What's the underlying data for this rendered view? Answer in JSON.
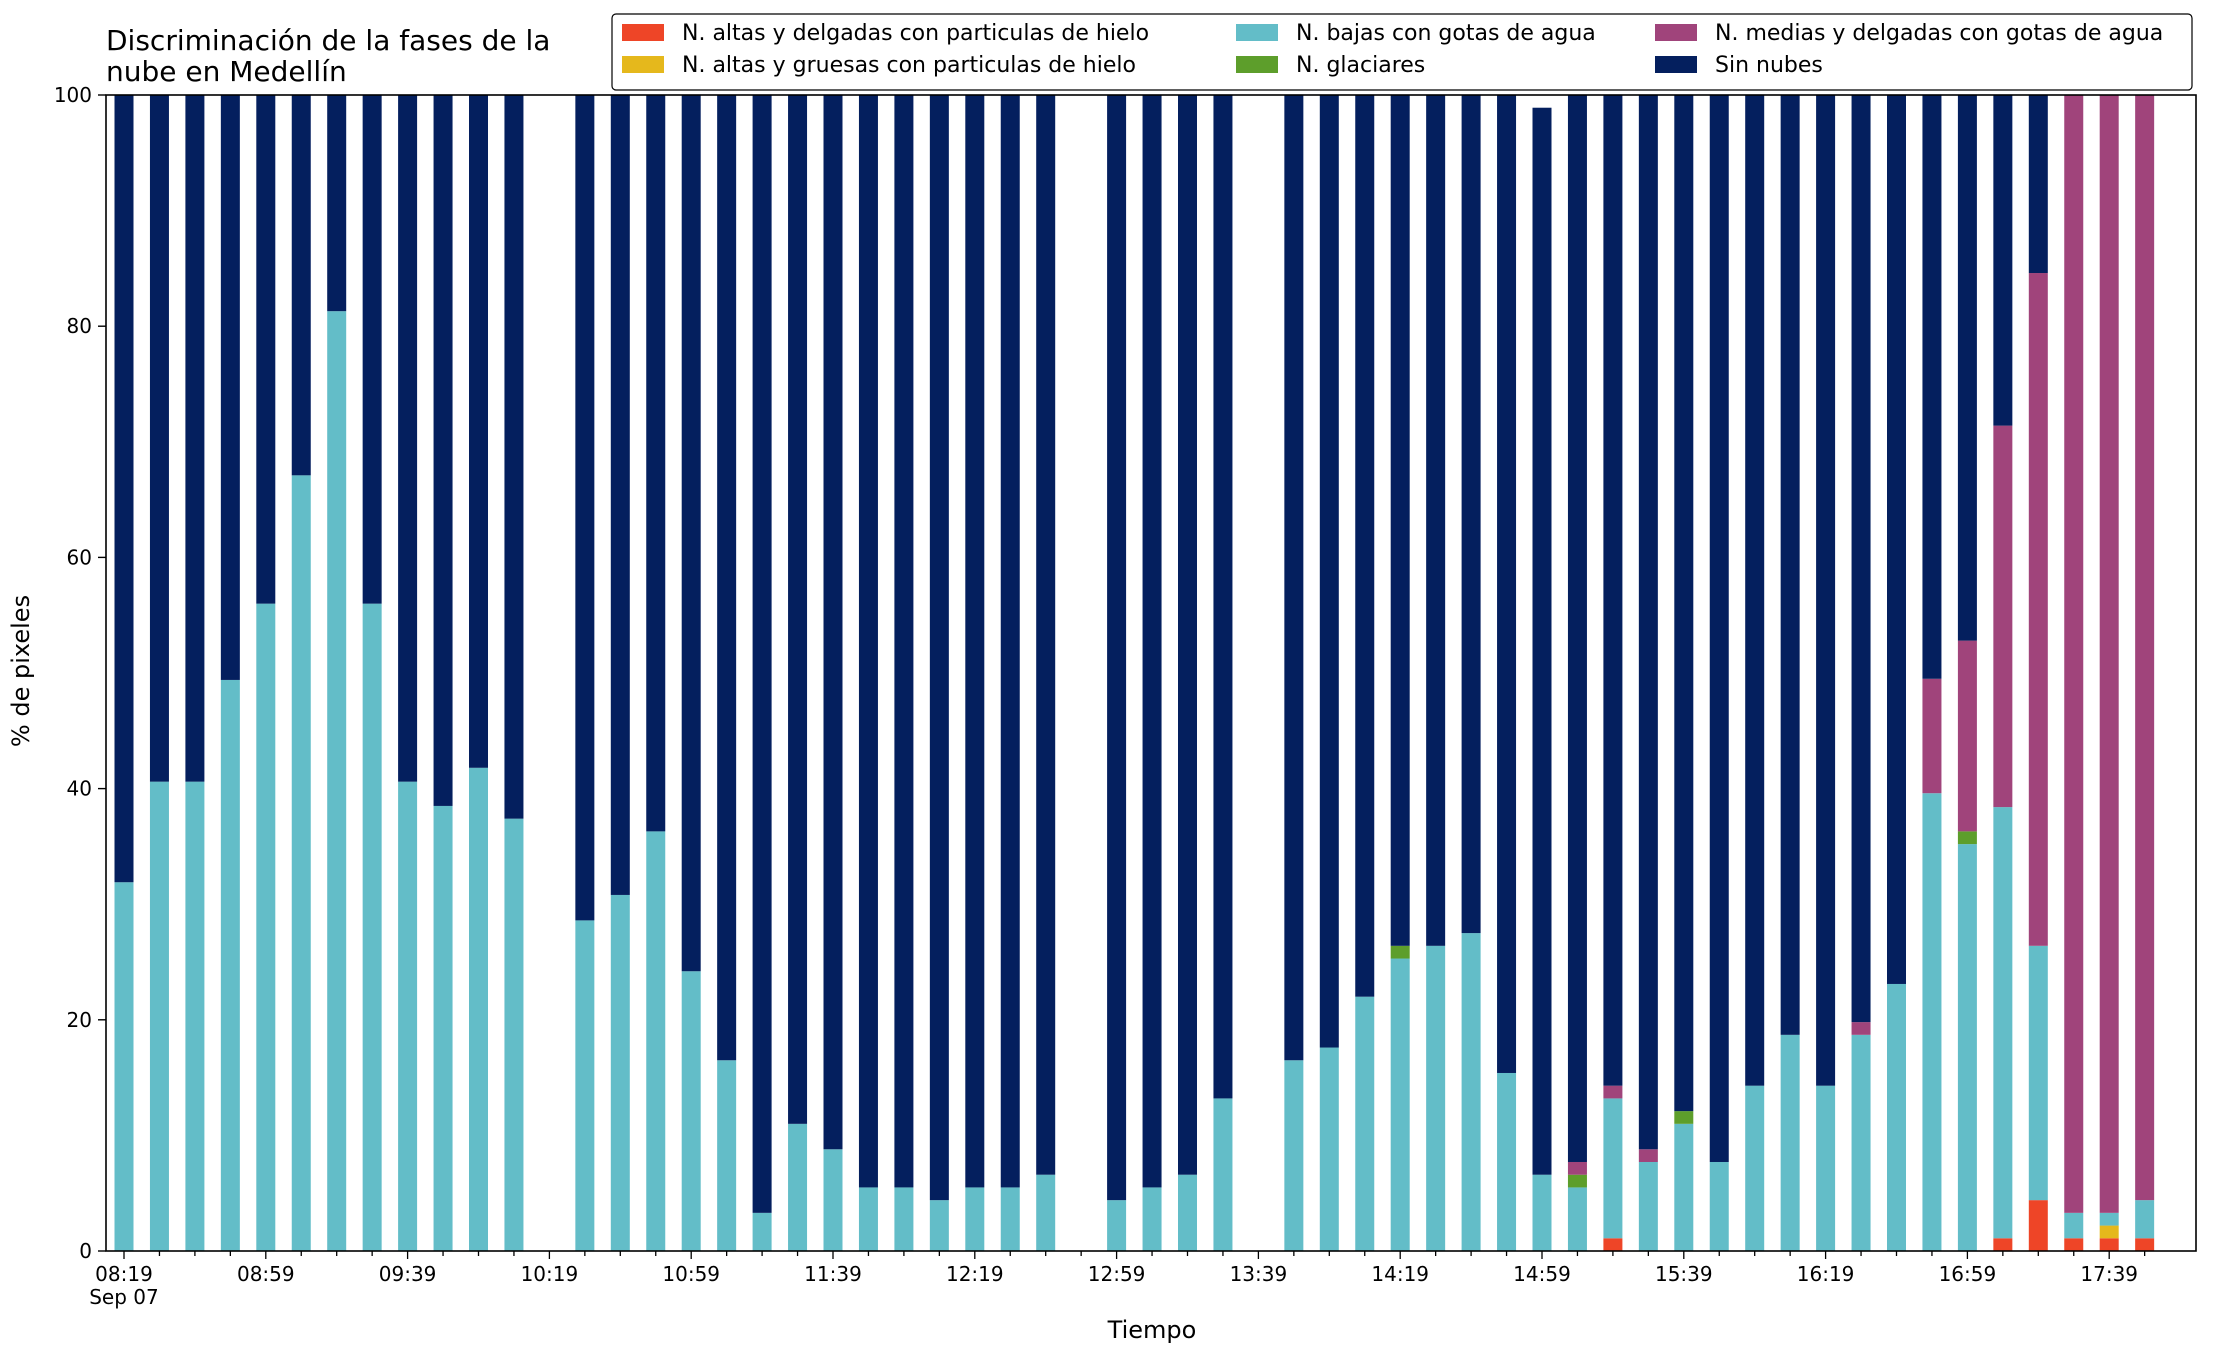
{
  "chart_data": {
    "type": "bar",
    "stacked": true,
    "title": "Discriminación de la fases de la\nnube en Medellín",
    "xlabel": "Tiempo",
    "ylabel": "% de pixeles",
    "ylim": [
      0,
      100
    ],
    "yticks": [
      0,
      20,
      40,
      60,
      80,
      100
    ],
    "xtick_labels": [
      "08:19\nSep 07",
      "08:59",
      "09:39",
      "10:19",
      "10:59",
      "11:39",
      "12:19",
      "12:59",
      "13:39",
      "14:19",
      "14:59",
      "15:39",
      "16:19",
      "16:59",
      "17:39"
    ],
    "legend_position": "top-right",
    "legend_columns": 3,
    "grid": false,
    "categories": [
      "08:19",
      "08:29",
      "08:39",
      "08:49",
      "08:59",
      "09:09",
      "09:19",
      "09:29",
      "09:39",
      "09:49",
      "09:59",
      "10:09",
      "10:19",
      "10:29",
      "10:39",
      "10:49",
      "10:59",
      "11:09",
      "11:19",
      "11:29",
      "11:39",
      "11:49",
      "11:59",
      "12:09",
      "12:19",
      "12:29",
      "12:39",
      "12:49",
      "12:59",
      "13:09",
      "13:19",
      "13:29",
      "13:39",
      "13:49",
      "13:59",
      "14:09",
      "14:19",
      "14:29",
      "14:39",
      "14:49",
      "14:59",
      "15:09",
      "15:19",
      "15:29",
      "15:39",
      "15:49",
      "15:59",
      "16:09",
      "16:19",
      "16:29",
      "16:39",
      "16:49",
      "16:59",
      "17:09",
      "17:19",
      "17:29",
      "17:39",
      "17:49"
    ],
    "series": [
      {
        "name": "N. altas y delgadas con particulas de hielo",
        "color": "#ee4527",
        "values": [
          0,
          0,
          0,
          0,
          0,
          0,
          0,
          0,
          0,
          0,
          0,
          0,
          null,
          0,
          0,
          0,
          0,
          0,
          0,
          0,
          0,
          0,
          0,
          0,
          0,
          0,
          0,
          null,
          0,
          0,
          0,
          0,
          null,
          0,
          0,
          0,
          0,
          0,
          0,
          0,
          0,
          0,
          1.1,
          0,
          0,
          0,
          0,
          0,
          0,
          0,
          0,
          0,
          0,
          1.1,
          4.4,
          1.1,
          1.1,
          1.1
        ]
      },
      {
        "name": "N. altas y gruesas con particulas de hielo",
        "color": "#e5b81c",
        "values": [
          0,
          0,
          0,
          0,
          0,
          0,
          0,
          0,
          0,
          0,
          0,
          0,
          null,
          0,
          0,
          0,
          0,
          0,
          0,
          0,
          0,
          0,
          0,
          0,
          0,
          0,
          0,
          null,
          0,
          0,
          0,
          0,
          null,
          0,
          0,
          0,
          0,
          0,
          0,
          0,
          0,
          0,
          0,
          0,
          0,
          0,
          0,
          0,
          0,
          0,
          0,
          0,
          0,
          0,
          0,
          0,
          1.1,
          0
        ]
      },
      {
        "name": "N. bajas con gotas de agua",
        "color": "#63bdc8",
        "values": [
          31.9,
          40.6,
          40.6,
          49.4,
          56.0,
          67.1,
          81.3,
          56.0,
          40.6,
          38.5,
          41.8,
          37.4,
          null,
          28.6,
          30.8,
          36.3,
          24.2,
          16.5,
          3.3,
          11.0,
          8.8,
          5.5,
          5.5,
          4.4,
          5.5,
          5.5,
          6.6,
          null,
          4.4,
          5.5,
          6.6,
          13.2,
          null,
          16.5,
          17.6,
          22.0,
          25.3,
          26.4,
          27.5,
          15.4,
          6.6,
          5.5,
          12.1,
          7.7,
          11.0,
          7.7,
          14.3,
          18.7,
          14.3,
          18.7,
          23.1,
          39.6,
          35.2,
          37.3,
          22.0,
          2.2,
          1.1,
          3.3
        ]
      },
      {
        "name": "N. glaciares",
        "color": "#5d9e2b",
        "values": [
          0,
          0,
          0,
          0,
          0,
          0,
          0,
          0,
          0,
          0,
          0,
          0,
          null,
          0,
          0,
          0,
          0,
          0,
          0,
          0,
          0,
          0,
          0,
          0,
          0,
          0,
          0,
          null,
          0,
          0,
          0,
          0,
          null,
          0,
          0,
          0,
          1.1,
          0,
          0,
          0,
          0,
          1.1,
          0,
          0,
          1.1,
          0,
          0,
          0,
          0,
          0,
          0,
          0,
          1.1,
          0,
          0,
          0,
          0,
          0
        ]
      },
      {
        "name": "N. medias y delgadas con gotas de agua",
        "color": "#a0447b",
        "values": [
          0,
          0,
          0,
          0,
          0,
          0,
          0,
          0,
          0,
          0,
          0,
          0,
          null,
          0,
          0,
          0,
          0,
          0,
          0,
          0,
          0,
          0,
          0,
          0,
          0,
          0,
          0,
          null,
          0,
          0,
          0,
          0,
          null,
          0,
          0,
          0,
          0,
          0,
          0,
          0,
          0,
          1.1,
          1.1,
          1.1,
          0,
          0,
          0,
          0,
          0,
          1.1,
          0,
          9.9,
          16.5,
          33.0,
          58.2,
          96.7,
          96.7,
          95.6
        ]
      },
      {
        "name": "Sin nubes",
        "color": "#041f5e",
        "values": [
          68.1,
          59.4,
          59.4,
          50.6,
          44.0,
          32.9,
          18.7,
          44.0,
          59.4,
          61.5,
          58.2,
          62.6,
          null,
          71.4,
          69.2,
          63.7,
          75.8,
          83.5,
          96.7,
          89.0,
          91.2,
          94.5,
          94.5,
          95.6,
          94.5,
          94.5,
          93.4,
          null,
          95.6,
          94.5,
          93.4,
          86.8,
          null,
          83.5,
          82.4,
          78.0,
          73.6,
          73.6,
          72.5,
          84.6,
          92.3,
          92.3,
          85.7,
          91.2,
          87.9,
          92.3,
          85.7,
          81.3,
          85.7,
          80.2,
          76.9,
          50.5,
          47.2,
          28.6,
          15.4,
          0,
          0,
          0
        ]
      }
    ]
  }
}
